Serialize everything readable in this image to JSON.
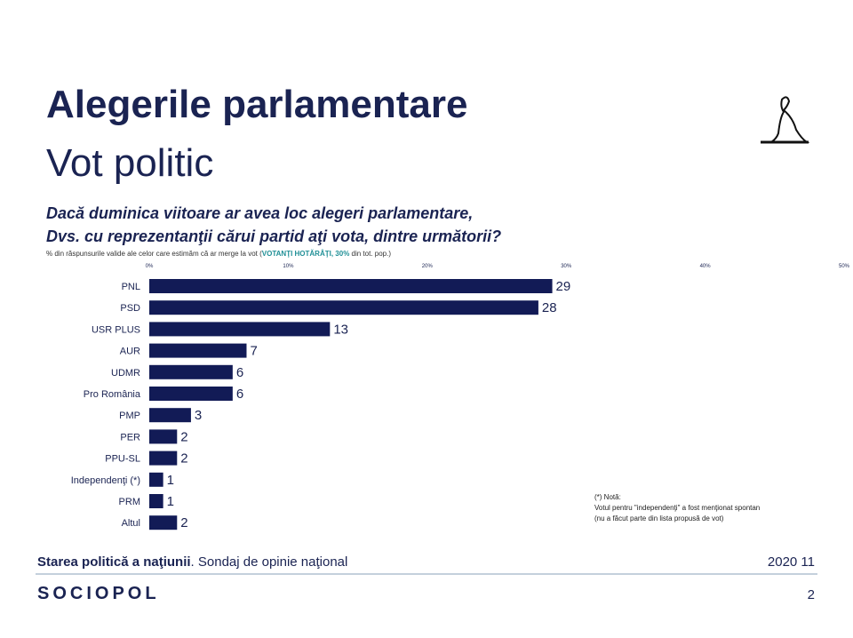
{
  "header": {
    "title": "Alegerile parlamentare",
    "subtitle": "Vot politic"
  },
  "chart_data": {
    "type": "hbar",
    "title": [
      "Dacă duminica viitoare ar avea loc alegeri parlamentare,",
      "Dvs. cu reprezentanţii cărui partid aţi vota, dintre următorii?"
    ],
    "subtitle": [
      "% din răspunsurile valide ale celor care estimăm că ar merge la vot (",
      "VOTANŢI HOTĂRÂŢI, 30%",
      " din tot. pop.)"
    ],
    "categories": [
      "PNL",
      "PSD",
      "USR PLUS",
      "AUR",
      "UDMR",
      "Pro România",
      "PMP",
      "PER",
      "PPU-SL",
      "Independenţi (*)",
      "PRM",
      "Altul"
    ],
    "values": [
      29,
      28,
      13,
      7,
      6,
      6,
      3,
      2,
      2,
      1,
      1,
      2
    ],
    "color": "#121b56",
    "xlim": [
      0,
      50
    ],
    "xticks": [
      {
        "value": 0,
        "label": "0%"
      },
      {
        "value": 10,
        "label": "10%"
      },
      {
        "value": 20,
        "label": "20%"
      },
      {
        "value": 30,
        "label": "30%"
      },
      {
        "value": 40,
        "label": "40%"
      },
      {
        "value": 50,
        "label": "50%"
      }
    ],
    "grid": false,
    "note": [
      "(*) Notă:",
      "Votul pentru \"independenţi\" a fost menţionat spontan",
      "(nu a făcut parte din lista propusă de vot)"
    ]
  },
  "footer": {
    "source_bold": "Starea politică a naţiunii",
    "source_rest": ". Sondaj de opinie naţional",
    "date": "2020 11",
    "brand": "SOCIOPOL",
    "page": "2"
  }
}
